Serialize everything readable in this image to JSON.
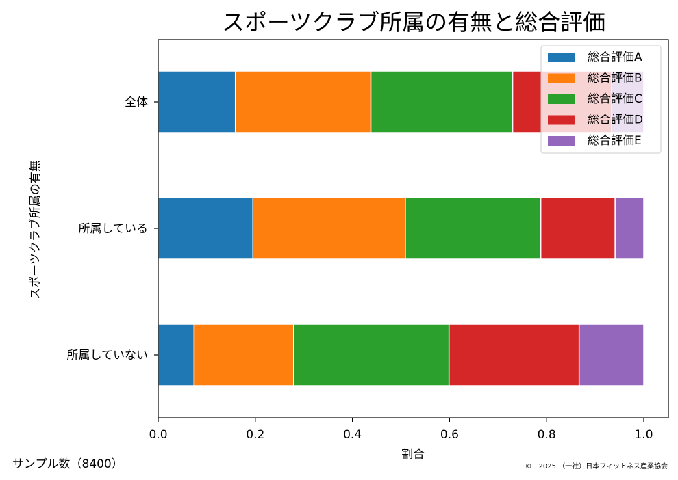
{
  "chart_data": {
    "type": "bar",
    "orientation": "horizontal",
    "stacked": true,
    "title": "スポーツクラブ所属の有無と総合評価",
    "xlabel": "割合",
    "ylabel": "スポーツクラブ所属の有無",
    "xlim": [
      0,
      1.05
    ],
    "xticks": [
      "0.0",
      "0.2",
      "0.4",
      "0.6",
      "0.8",
      "1.0"
    ],
    "categories": [
      "全体",
      "所属している",
      "所属していない"
    ],
    "series": [
      {
        "name": "総合評価A",
        "color": "#1f77b4",
        "values": [
          0.159,
          0.195,
          0.074
        ]
      },
      {
        "name": "総合評価B",
        "color": "#ff7f0e",
        "values": [
          0.279,
          0.314,
          0.205
        ]
      },
      {
        "name": "総合評価C",
        "color": "#2ca02c",
        "values": [
          0.292,
          0.279,
          0.32
        ]
      },
      {
        "name": "総合評価D",
        "color": "#d62728",
        "values": [
          0.204,
          0.153,
          0.268
        ]
      },
      {
        "name": "総合評価E",
        "color": "#9467bd",
        "values": [
          0.066,
          0.059,
          0.133
        ]
      }
    ],
    "legend_position": "top-right",
    "grid": false
  },
  "footer": {
    "sample_note": "サンプル数（8400）",
    "copyright": "©　2025 （一社）日本フィットネス産業協会"
  }
}
